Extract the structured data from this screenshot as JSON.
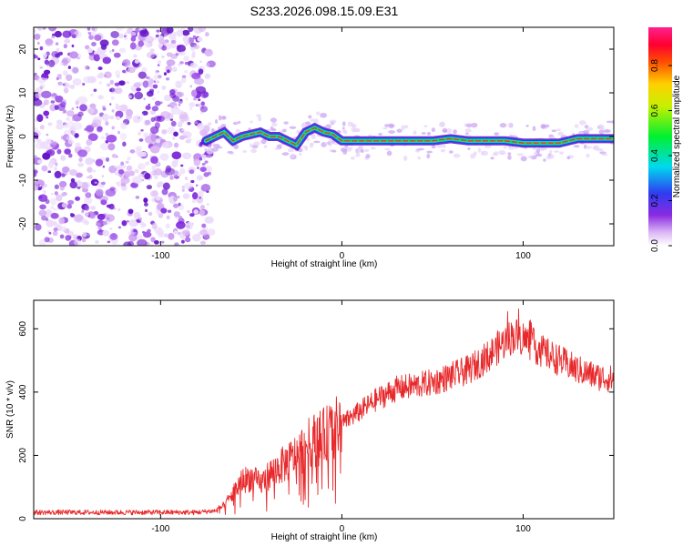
{
  "figure_title": "S233.2026.098.15.09.E31",
  "colors": {
    "snr_line": "#e8292b",
    "spectrum_core": "#e53935",
    "background_noise": "#6a1bd1"
  },
  "chart_data": [
    {
      "type": "heatmap",
      "title": "S233.2026.098.15.09.E31",
      "xlabel": "Height of straight line (km)",
      "ylabel": "Frequency (Hz)",
      "xlim": [
        -170,
        150
      ],
      "ylim": [
        -25,
        25
      ],
      "xticks": [
        -100,
        0,
        100
      ],
      "xtick_labels": [
        "-100",
        "0",
        "100"
      ],
      "yticks": [
        -20,
        -10,
        0,
        10,
        20
      ],
      "ytick_labels": [
        "-20",
        "-10",
        "0",
        "10",
        "20"
      ],
      "noise_region_x": [
        -170,
        -75
      ],
      "signal_start_x": -75,
      "ridge": {
        "x": [
          -75,
          -70,
          -65,
          -60,
          -55,
          -50,
          -45,
          -40,
          -35,
          -30,
          -25,
          -20,
          -15,
          -10,
          -5,
          0,
          5,
          10,
          20,
          30,
          40,
          50,
          60,
          70,
          80,
          90,
          100,
          110,
          120,
          130,
          140,
          150
        ],
        "freq_hz": [
          -1,
          0,
          1,
          -1,
          0,
          0.5,
          1,
          0,
          0,
          -1,
          -2,
          1,
          2,
          1,
          0.5,
          -1,
          -1,
          -1,
          -1,
          -1,
          -1,
          -1,
          -0.5,
          -1,
          -1,
          -1,
          -1.5,
          -1.5,
          -1.5,
          -0.5,
          -0.5,
          -0.5
        ]
      },
      "colorbar": {
        "label": "Normalized spectral amplitude",
        "range": [
          0.0,
          0.97
        ],
        "ticks": [
          0.0,
          0.2,
          0.4,
          0.6,
          0.8
        ],
        "tick_labels": [
          "0.0",
          "0.2",
          "0.4",
          "0.6",
          "0.8"
        ]
      }
    },
    {
      "type": "line",
      "xlabel": "Height of straight line (km)",
      "ylabel": "SNR (10 * v/v)",
      "xlim": [
        -170,
        150
      ],
      "ylim": [
        0,
        690
      ],
      "xticks": [
        -100,
        0,
        100
      ],
      "xtick_labels": [
        "-100",
        "0",
        "100"
      ],
      "yticks": [
        0,
        200,
        400,
        600
      ],
      "ytick_labels": [
        "0",
        "200",
        "400",
        "600"
      ],
      "series": [
        {
          "name": "SNR",
          "x": [
            -170,
            -140,
            -110,
            -80,
            -70,
            -65,
            -60,
            -55,
            -50,
            -45,
            -40,
            -35,
            -30,
            -25,
            -20,
            -15,
            -10,
            -5,
            0,
            10,
            20,
            30,
            40,
            50,
            60,
            70,
            80,
            90,
            95,
            100,
            110,
            120,
            130,
            140,
            150
          ],
          "values": [
            20,
            20,
            20,
            20,
            25,
            40,
            80,
            120,
            130,
            110,
            140,
            160,
            180,
            200,
            230,
            250,
            260,
            280,
            300,
            340,
            380,
            410,
            420,
            430,
            450,
            470,
            510,
            560,
            580,
            570,
            530,
            500,
            470,
            450,
            440
          ]
        }
      ]
    }
  ]
}
